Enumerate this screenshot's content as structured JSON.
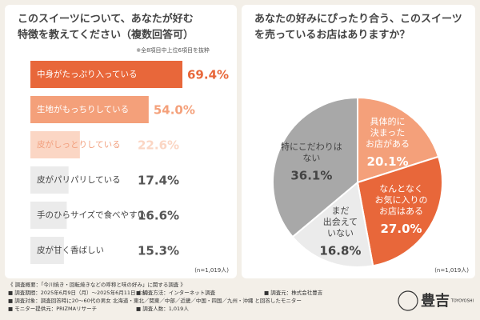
{
  "chart_data": [
    {
      "type": "hbar",
      "title": [
        "このスイーツについて、あなたが好む",
        "特徴を教えてください（複数回答可）"
      ],
      "subtitle": "※全8項目中上位6項目を抜粋",
      "categories": [
        "中身がたっぷり入っている",
        "生地がもっちりしている",
        "皮がしっとりしている",
        "皮がパリパリしている",
        "手のひらサイズで食べやすい",
        "皮が甘く香ばしい"
      ],
      "values": [
        69.4,
        54.0,
        22.6,
        17.4,
        16.6,
        15.3
      ],
      "value_labels": [
        "69.4%",
        "54.0%",
        "22.6%",
        "17.4%",
        "16.6%",
        "15.3%"
      ],
      "colors": [
        "#e8673a",
        "#f4a07a",
        "#fbd6c4",
        "#ebebeb",
        "#ebebeb",
        "#ebebeb"
      ],
      "note": "(n=1,019人)"
    },
    {
      "type": "pie",
      "title": [
        "あなたの好みにぴったり合う、このスイーツ",
        "を売っているお店はありますか？"
      ],
      "categories": [
        [
          "具体的に",
          "決まった",
          "お店がある"
        ],
        [
          "なんとなく",
          "お気に入りの",
          "お店はある"
        ],
        [
          "まだ",
          "出会えて",
          "いない"
        ],
        [
          "特にこだわりは",
          "ない"
        ]
      ],
      "values": [
        20.1,
        27.0,
        16.8,
        36.1
      ],
      "value_labels": [
        "20.1%",
        "27.0%",
        "16.8%",
        "36.1%"
      ],
      "colors": [
        "#f4a07a",
        "#e8673a",
        "#ebebeb",
        "#a8a8a8"
      ],
      "note": "(n=1,019人)"
    }
  ],
  "footer": {
    "heading": "《 調査概要：「今川焼き・回転焼きなどの呼称と味の好み」に関する調査 》",
    "lines": [
      "■ 調査期間：2025年6月9日（月）～2025年6月11日（水）",
      "■ 調査方法：インターネット調査",
      "■ 調査元：株式会社豊吉",
      "■ 調査対象：調査回答時に20～60代の男女 北海道・東北／関東／中部／近畿／中国・四国／九州・沖縄 と回答したモニター",
      "■ モニター提供元：PRIZMAリサーチ",
      "■ 調査人数：1,019人"
    ],
    "logo": "豊吉",
    "logo_sub": "TOYOYOSHI"
  }
}
